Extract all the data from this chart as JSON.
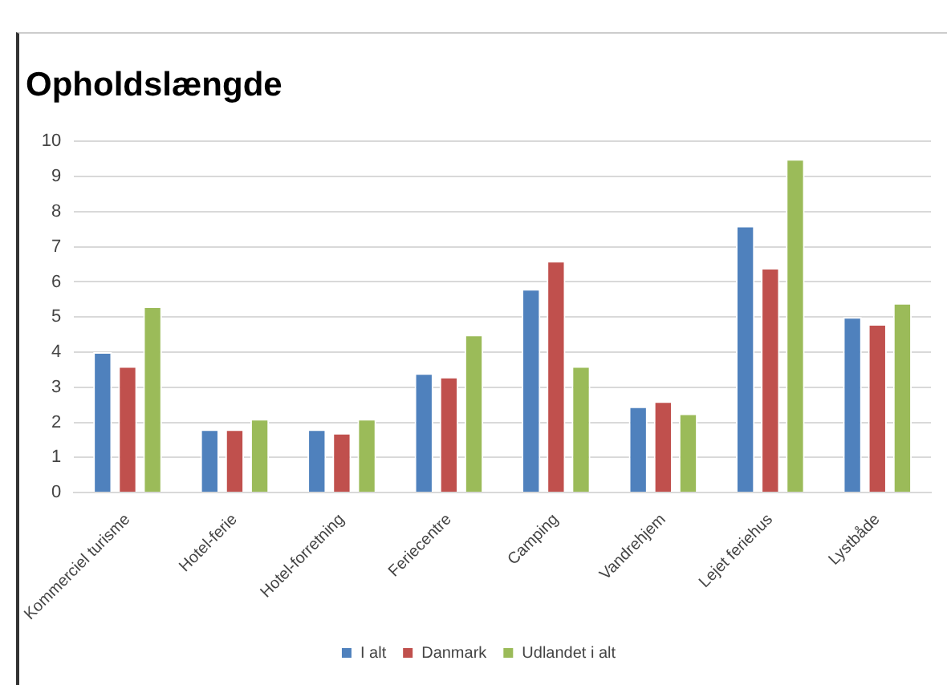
{
  "chart_data": {
    "type": "bar",
    "title": "Opholdslængde",
    "categories": [
      "Kommerciel turisme",
      "Hotel-ferie",
      "Hotel-forretning",
      "Feriecentre",
      "Camping",
      "Vandrehjem",
      "Lejet feriehus",
      "Lystbåde"
    ],
    "series": [
      {
        "name": "I alt",
        "color": "#4f81bd",
        "values": [
          4.0,
          1.8,
          1.8,
          3.4,
          5.8,
          2.45,
          7.6,
          5.0
        ]
      },
      {
        "name": "Danmark",
        "color": "#c0504d",
        "values": [
          3.6,
          1.8,
          1.7,
          3.3,
          6.6,
          2.6,
          6.4,
          4.8
        ]
      },
      {
        "name": "Udlandet i alt",
        "color": "#9bbb59",
        "values": [
          5.3,
          2.1,
          2.1,
          4.5,
          3.6,
          2.25,
          9.5,
          5.4
        ]
      }
    ],
    "ylim": [
      0,
      10
    ],
    "yticks": [
      0,
      1,
      2,
      3,
      4,
      5,
      6,
      7,
      8,
      9,
      10
    ],
    "grid": "y",
    "legend": "bottom"
  }
}
